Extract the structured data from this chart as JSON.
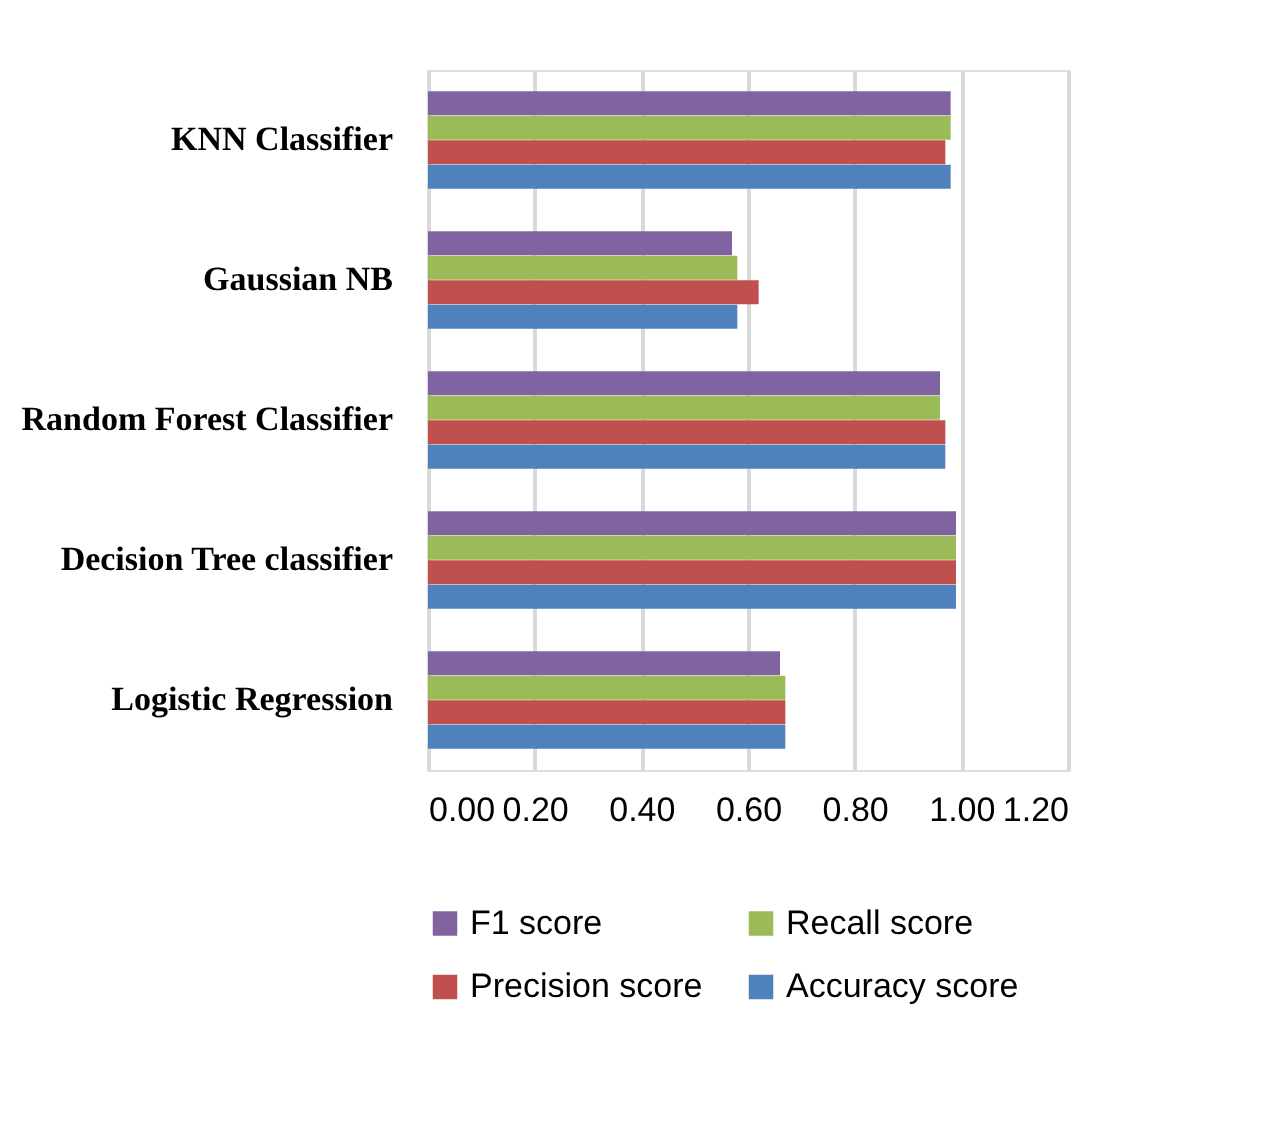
{
  "chart_data": {
    "type": "bar",
    "orientation": "horizontal",
    "categories": [
      "KNN Classifier",
      "Gaussian NB",
      "Random Forest Classifier",
      "Decision Tree classifier",
      "Logistic Regression"
    ],
    "series": [
      {
        "name": "F1 score",
        "color": "#8064a2",
        "values": [
          0.98,
          0.57,
          0.96,
          0.99,
          0.66
        ]
      },
      {
        "name": "Recall score",
        "color": "#9bbb59",
        "values": [
          0.98,
          0.58,
          0.96,
          0.99,
          0.67
        ]
      },
      {
        "name": "Precision score",
        "color": "#c0504d",
        "values": [
          0.97,
          0.62,
          0.97,
          0.99,
          0.67
        ]
      },
      {
        "name": "Accuracy score",
        "color": "#4f81bd",
        "values": [
          0.98,
          0.58,
          0.97,
          0.99,
          0.67
        ]
      }
    ],
    "xlim": [
      0,
      1.2
    ],
    "xticks": [
      {
        "value": 0,
        "label": "0.00"
      },
      {
        "value": 0.2,
        "label": "0.20"
      },
      {
        "value": 0.4,
        "label": "0.40"
      },
      {
        "value": 0.6,
        "label": "0.60"
      },
      {
        "value": 0.8,
        "label": "0.80"
      },
      {
        "value": 1,
        "label": "1.00"
      },
      {
        "value": 1.2,
        "label": "1.20"
      }
    ],
    "grid": "x",
    "legend": "bottom"
  }
}
